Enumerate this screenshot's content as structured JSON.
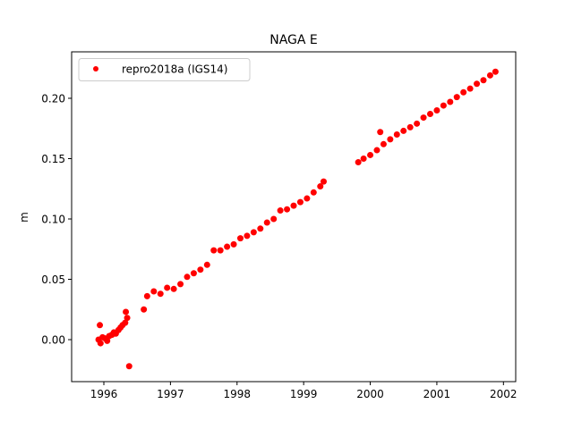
{
  "chart_data": {
    "type": "scatter",
    "title": "NAGA E",
    "xlabel": "",
    "ylabel": "m",
    "xlim": [
      1995.516,
      2002.184
    ],
    "ylim": [
      -0.0348,
      0.2385
    ],
    "xticks": [
      1996,
      1997,
      1998,
      1999,
      2000,
      2001,
      2002
    ],
    "xtick_labels": [
      "1996",
      "1997",
      "1998",
      "1999",
      "2000",
      "2001",
      "2002"
    ],
    "yticks": [
      0.0,
      0.05,
      0.1,
      0.15,
      0.2
    ],
    "ytick_labels": [
      "0.00",
      "0.05",
      "0.10",
      "0.15",
      "0.20"
    ],
    "grid": false,
    "legend_position": "top-left",
    "series": [
      {
        "name": "repro2018a (IGS14)",
        "color": "#ff0000",
        "marker": "circle",
        "x": [
          1995.92,
          1995.94,
          1995.95,
          1995.98,
          1996.02,
          1996.05,
          1996.08,
          1996.12,
          1996.15,
          1996.18,
          1996.22,
          1996.25,
          1996.28,
          1996.32,
          1996.33,
          1996.35,
          1996.38,
          1996.6,
          1996.65,
          1996.75,
          1996.85,
          1996.95,
          1997.05,
          1997.15,
          1997.25,
          1997.35,
          1997.45,
          1997.55,
          1997.65,
          1997.75,
          1997.85,
          1997.95,
          1998.05,
          1998.15,
          1998.25,
          1998.35,
          1998.45,
          1998.55,
          1998.65,
          1998.75,
          1998.85,
          1998.95,
          1999.05,
          1999.15,
          1999.25,
          1999.3,
          1999.82,
          1999.9,
          2000.0,
          2000.1,
          2000.15,
          2000.2,
          2000.3,
          2000.4,
          2000.5,
          2000.6,
          2000.7,
          2000.8,
          2000.9,
          2001.0,
          2001.1,
          2001.2,
          2001.3,
          2001.4,
          2001.5,
          2001.6,
          2001.7,
          2001.8,
          2001.88
        ],
        "y": [
          0.0,
          0.012,
          -0.003,
          0.002,
          0.001,
          -0.001,
          0.003,
          0.004,
          0.006,
          0.005,
          0.008,
          0.01,
          0.012,
          0.014,
          0.023,
          0.018,
          -0.022,
          0.025,
          0.036,
          0.04,
          0.038,
          0.043,
          0.042,
          0.046,
          0.052,
          0.055,
          0.058,
          0.062,
          0.074,
          0.074,
          0.077,
          0.079,
          0.084,
          0.086,
          0.089,
          0.092,
          0.097,
          0.1,
          0.107,
          0.108,
          0.111,
          0.114,
          0.117,
          0.122,
          0.127,
          0.131,
          0.147,
          0.15,
          0.153,
          0.157,
          0.172,
          0.162,
          0.166,
          0.17,
          0.173,
          0.176,
          0.179,
          0.184,
          0.187,
          0.19,
          0.194,
          0.197,
          0.201,
          0.205,
          0.208,
          0.212,
          0.215,
          0.219,
          0.222
        ]
      }
    ]
  }
}
